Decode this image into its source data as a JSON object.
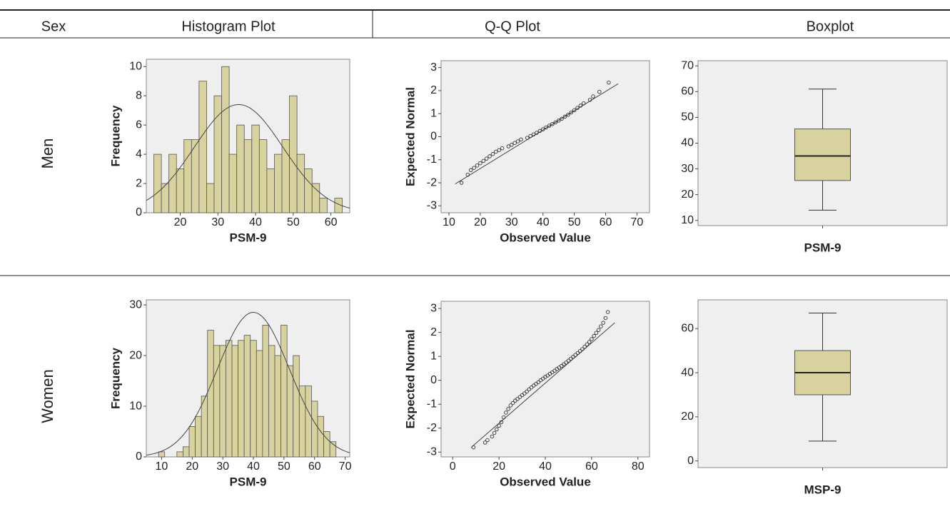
{
  "table": {
    "headers": [
      "Sex",
      "Histogram Plot",
      "Q-Q Plot",
      "Boxplot"
    ],
    "rows": [
      "Men",
      "Women"
    ]
  },
  "chart_data": [
    {
      "type": "histogram",
      "xlabel": "PSM-9",
      "ylabel": "Frequency",
      "color": "#d8d29e",
      "bins": [
        13,
        15,
        17,
        19,
        21,
        23,
        25,
        27,
        29,
        31,
        33,
        35,
        37,
        39,
        41,
        43,
        45,
        47,
        49,
        51,
        53,
        55,
        57,
        59,
        61,
        63
      ],
      "values": [
        4,
        2,
        4,
        3,
        5,
        5,
        9,
        2,
        8,
        10,
        4,
        6,
        5,
        6,
        5,
        3,
        4,
        5,
        8,
        4,
        3,
        2,
        1,
        0,
        1
      ],
      "normal_curve": {
        "mean": 35.5,
        "sd": 11.75
      },
      "xlim": [
        11,
        65
      ],
      "ylim": [
        0,
        10.5
      ],
      "xticks": [
        20,
        30,
        40,
        50,
        60
      ],
      "yticks": [
        0,
        2,
        4,
        6,
        8,
        10
      ]
    },
    {
      "type": "scatter",
      "xlabel": "Observed Value",
      "ylabel": "Expected Normal",
      "x": [
        14,
        16,
        17,
        18,
        19,
        20,
        21,
        22,
        23,
        24,
        25,
        26,
        27,
        29,
        30,
        31,
        32,
        33,
        35,
        36,
        37,
        38,
        39,
        40,
        41,
        42,
        43,
        44,
        45,
        46,
        47,
        48,
        49,
        50,
        51,
        52,
        53,
        55,
        56,
        58,
        61
      ],
      "values": [
        -2.0,
        -1.65,
        -1.45,
        -1.35,
        -1.25,
        -1.15,
        -1.05,
        -0.95,
        -0.85,
        -0.75,
        -0.65,
        -0.58,
        -0.5,
        -0.42,
        -0.35,
        -0.27,
        -0.2,
        -0.12,
        -0.05,
        0.03,
        0.1,
        0.17,
        0.25,
        0.32,
        0.4,
        0.48,
        0.55,
        0.62,
        0.7,
        0.78,
        0.87,
        0.95,
        1.05,
        1.15,
        1.25,
        1.35,
        1.45,
        1.6,
        1.75,
        1.95,
        2.35
      ],
      "reference_line": {
        "x": [
          12,
          64
        ],
        "values": [
          -2.05,
          2.3
        ]
      },
      "xlim": [
        7.5,
        74
      ],
      "ylim": [
        -3.3,
        3.3
      ],
      "xticks": [
        10,
        20,
        30,
        40,
        50,
        60,
        70
      ],
      "yticks": [
        -3,
        -2,
        -1,
        0,
        1,
        2,
        3
      ]
    },
    {
      "type": "box",
      "xlabel": "PSM-9",
      "color": "#d8d29e",
      "min": 14,
      "q1": 25.5,
      "median": 35,
      "q3": 45.5,
      "max": 61,
      "ylim": [
        8,
        72
      ],
      "yticks": [
        10,
        20,
        30,
        40,
        50,
        60,
        70
      ]
    },
    {
      "type": "histogram",
      "xlabel": "PSM-9",
      "ylabel": "Frequency",
      "color": "#d8d29e",
      "bins": [
        9,
        11,
        13,
        15,
        17,
        19,
        21,
        23,
        25,
        27,
        29,
        31,
        33,
        35,
        37,
        39,
        41,
        43,
        45,
        47,
        49,
        51,
        53,
        55,
        57,
        59,
        61,
        63,
        65,
        67
      ],
      "values": [
        1,
        0,
        0,
        1,
        2,
        6,
        8,
        12,
        25,
        22,
        22,
        23,
        22,
        23,
        24,
        23,
        21,
        26,
        22,
        20,
        26,
        18,
        20,
        14,
        14,
        11,
        8,
        5,
        3
      ],
      "normal_curve": {
        "mean": 40,
        "sd": 11.8
      },
      "xlim": [
        5,
        71.5
      ],
      "ylim": [
        0,
        31
      ],
      "xticks": [
        10,
        20,
        30,
        40,
        50,
        60,
        70
      ],
      "yticks": [
        0,
        10,
        20,
        30
      ]
    },
    {
      "type": "scatter",
      "xlabel": "Observed Value",
      "ylabel": "Expected Normal",
      "x": [
        9,
        14,
        15,
        17,
        18,
        19,
        20,
        21,
        22,
        23,
        24,
        25,
        26,
        27,
        28,
        29,
        30,
        31,
        32,
        33,
        34,
        35,
        36,
        37,
        38,
        39,
        40,
        41,
        42,
        43,
        44,
        45,
        46,
        47,
        48,
        49,
        50,
        51,
        52,
        53,
        54,
        55,
        56,
        57,
        58,
        59,
        60,
        61,
        62,
        63,
        64,
        65,
        66,
        67
      ],
      "values": [
        -2.8,
        -2.6,
        -2.5,
        -2.35,
        -2.2,
        -2.05,
        -1.9,
        -1.75,
        -1.55,
        -1.35,
        -1.2,
        -1.05,
        -0.95,
        -0.85,
        -0.78,
        -0.7,
        -0.62,
        -0.55,
        -0.47,
        -0.38,
        -0.3,
        -0.22,
        -0.15,
        -0.08,
        0.0,
        0.07,
        0.14,
        0.2,
        0.27,
        0.33,
        0.4,
        0.47,
        0.53,
        0.6,
        0.67,
        0.74,
        0.82,
        0.9,
        0.98,
        1.06,
        1.14,
        1.22,
        1.3,
        1.4,
        1.5,
        1.6,
        1.72,
        1.85,
        1.98,
        2.1,
        2.25,
        2.4,
        2.6,
        2.85
      ],
      "reference_line": {
        "x": [
          8,
          70
        ],
        "values": [
          -2.8,
          2.4
        ]
      },
      "xlim": [
        -5,
        85
      ],
      "ylim": [
        -3.2,
        3.3
      ],
      "xticks": [
        0,
        20,
        40,
        60,
        80
      ],
      "yticks": [
        -3,
        -2,
        -1,
        0,
        1,
        2,
        3
      ]
    },
    {
      "type": "box",
      "xlabel": "MSP-9",
      "color": "#d8d29e",
      "min": 9,
      "q1": 30,
      "median": 40,
      "q3": 50,
      "max": 67,
      "ylim": [
        -3,
        73
      ],
      "yticks": [
        0,
        20,
        40,
        60
      ]
    }
  ]
}
